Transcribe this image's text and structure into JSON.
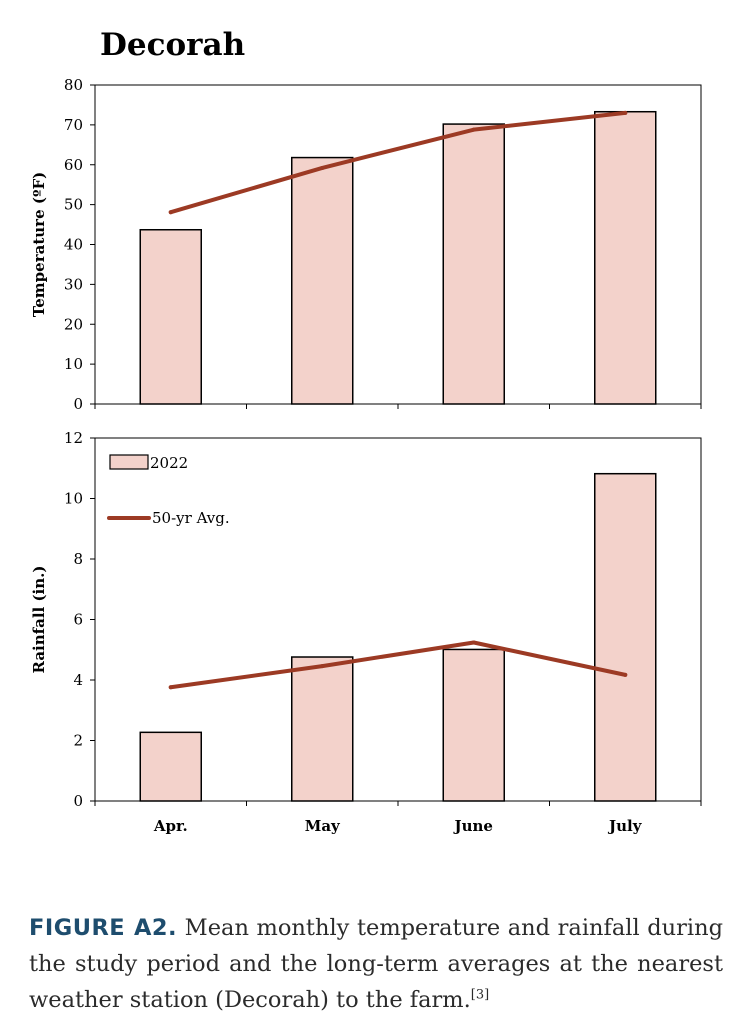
{
  "figure": {
    "label": "FIGURE A2.",
    "caption_text": " Mean monthly temperature and rainfall during the study period and the long-term averages at the nearest weather station (Decorah) to the farm.",
    "reference": "[3]"
  },
  "colors": {
    "bar_fill": "#f3d2cb",
    "bar_stroke": "#000000",
    "avg_line": "#9c3a24"
  },
  "chart_data": [
    {
      "type": "bar",
      "title": "Decorah",
      "ylabel": "Temperature (ºF)",
      "categories": [
        "Apr.",
        "May",
        "June",
        "July"
      ],
      "ylim": [
        0,
        80
      ],
      "yticks": [
        0,
        10,
        20,
        30,
        40,
        50,
        60,
        70,
        80
      ],
      "series": [
        {
          "name": "2022",
          "kind": "bar",
          "values": [
            43.7,
            61.8,
            70.2,
            73.3
          ]
        },
        {
          "name": "50-yr Avg.",
          "kind": "line",
          "values": [
            48.1,
            59.2,
            68.8,
            73.0
          ]
        }
      ]
    },
    {
      "type": "bar",
      "ylabel": "Rainfall (in.)",
      "categories": [
        "Apr.",
        "May",
        "June",
        "July"
      ],
      "ylim": [
        0,
        12
      ],
      "yticks": [
        0,
        2,
        4,
        6,
        8,
        10,
        12
      ],
      "legend_position": "top-left",
      "series": [
        {
          "name": "2022",
          "kind": "bar",
          "values": [
            2.27,
            4.76,
            5.01,
            10.82
          ]
        },
        {
          "name": "50-yr Avg.",
          "kind": "line",
          "values": [
            3.76,
            4.46,
            5.24,
            4.17
          ]
        }
      ]
    }
  ]
}
